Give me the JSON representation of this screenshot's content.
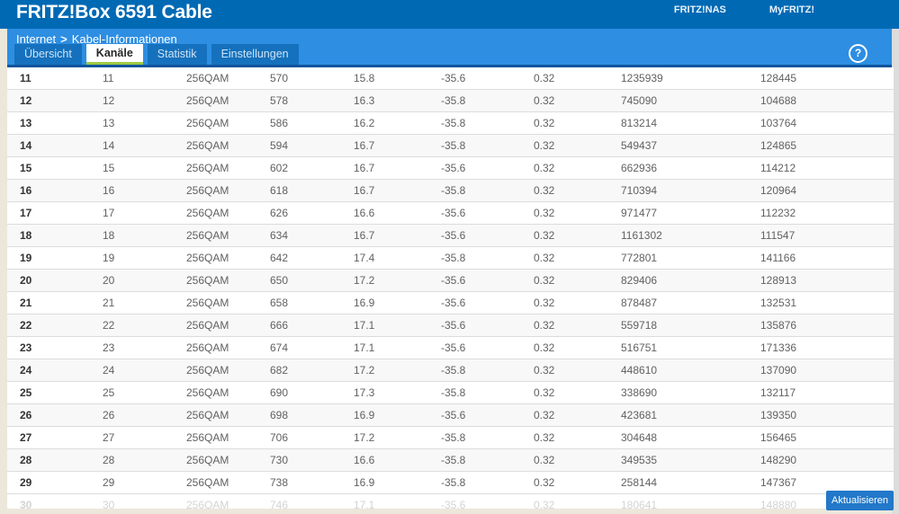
{
  "header": {
    "title": "FRITZ!Box 6591 Cable",
    "nav_links": [
      "FRITZ!NAS",
      "MyFRITZ!"
    ]
  },
  "breadcrumb": {
    "section": "Internet",
    "separator": ">",
    "page": "Kabel-Informationen"
  },
  "help": {
    "glyph": "?"
  },
  "tabs": [
    {
      "id": "uebersicht",
      "label": "Übersicht",
      "active": false
    },
    {
      "id": "kanaele",
      "label": "Kanäle",
      "active": true
    },
    {
      "id": "statistik",
      "label": "Statistik",
      "active": false
    },
    {
      "id": "einstellungen",
      "label": "Einstellungen",
      "active": false
    }
  ],
  "table": {
    "column_keys": [
      "channel",
      "channel_id",
      "modulation",
      "frequency",
      "level",
      "mse",
      "latency",
      "correctable_errors",
      "uncorrectable_errors"
    ],
    "rows": [
      {
        "values": [
          "11",
          "11",
          "256QAM",
          "570",
          "15.8",
          "-35.6",
          "0.32",
          "1235939",
          "128445"
        ],
        "faded": false
      },
      {
        "values": [
          "12",
          "12",
          "256QAM",
          "578",
          "16.3",
          "-35.8",
          "0.32",
          "745090",
          "104688"
        ],
        "faded": false
      },
      {
        "values": [
          "13",
          "13",
          "256QAM",
          "586",
          "16.2",
          "-35.8",
          "0.32",
          "813214",
          "103764"
        ],
        "faded": false
      },
      {
        "values": [
          "14",
          "14",
          "256QAM",
          "594",
          "16.7",
          "-35.8",
          "0.32",
          "549437",
          "124865"
        ],
        "faded": false
      },
      {
        "values": [
          "15",
          "15",
          "256QAM",
          "602",
          "16.7",
          "-35.6",
          "0.32",
          "662936",
          "114212"
        ],
        "faded": false
      },
      {
        "values": [
          "16",
          "16",
          "256QAM",
          "618",
          "16.7",
          "-35.8",
          "0.32",
          "710394",
          "120964"
        ],
        "faded": false
      },
      {
        "values": [
          "17",
          "17",
          "256QAM",
          "626",
          "16.6",
          "-35.6",
          "0.32",
          "971477",
          "112232"
        ],
        "faded": false
      },
      {
        "values": [
          "18",
          "18",
          "256QAM",
          "634",
          "16.7",
          "-35.6",
          "0.32",
          "1161302",
          "111547"
        ],
        "faded": false
      },
      {
        "values": [
          "19",
          "19",
          "256QAM",
          "642",
          "17.4",
          "-35.8",
          "0.32",
          "772801",
          "141166"
        ],
        "faded": false
      },
      {
        "values": [
          "20",
          "20",
          "256QAM",
          "650",
          "17.2",
          "-35.6",
          "0.32",
          "829406",
          "128913"
        ],
        "faded": false
      },
      {
        "values": [
          "21",
          "21",
          "256QAM",
          "658",
          "16.9",
          "-35.6",
          "0.32",
          "878487",
          "132531"
        ],
        "faded": false
      },
      {
        "values": [
          "22",
          "22",
          "256QAM",
          "666",
          "17.1",
          "-35.6",
          "0.32",
          "559718",
          "135876"
        ],
        "faded": false
      },
      {
        "values": [
          "23",
          "23",
          "256QAM",
          "674",
          "17.1",
          "-35.6",
          "0.32",
          "516751",
          "171336"
        ],
        "faded": false
      },
      {
        "values": [
          "24",
          "24",
          "256QAM",
          "682",
          "17.2",
          "-35.8",
          "0.32",
          "448610",
          "137090"
        ],
        "faded": false
      },
      {
        "values": [
          "25",
          "25",
          "256QAM",
          "690",
          "17.3",
          "-35.8",
          "0.32",
          "338690",
          "132117"
        ],
        "faded": false
      },
      {
        "values": [
          "26",
          "26",
          "256QAM",
          "698",
          "16.9",
          "-35.6",
          "0.32",
          "423681",
          "139350"
        ],
        "faded": false
      },
      {
        "values": [
          "27",
          "27",
          "256QAM",
          "706",
          "17.2",
          "-35.8",
          "0.32",
          "304648",
          "156465"
        ],
        "faded": false
      },
      {
        "values": [
          "28",
          "28",
          "256QAM",
          "730",
          "16.6",
          "-35.8",
          "0.32",
          "349535",
          "148290"
        ],
        "faded": false
      },
      {
        "values": [
          "29",
          "29",
          "256QAM",
          "738",
          "16.9",
          "-35.8",
          "0.32",
          "258144",
          "147367"
        ],
        "faded": false
      },
      {
        "values": [
          "30",
          "30",
          "256QAM",
          "746",
          "17.1",
          "-35.6",
          "0.32",
          "180641",
          "148880"
        ],
        "faded": true
      }
    ]
  },
  "actions": {
    "refresh_label": "Aktualisieren"
  },
  "colors": {
    "header_bar": "#0069b4",
    "panel_bar": "#2d8ee2",
    "tab_inactive": "#1571bd",
    "active_tab_underline": "#9dc944",
    "navy_divider": "#0d549c",
    "refresh_button": "#2278c9",
    "page_background": "#ece7db"
  }
}
